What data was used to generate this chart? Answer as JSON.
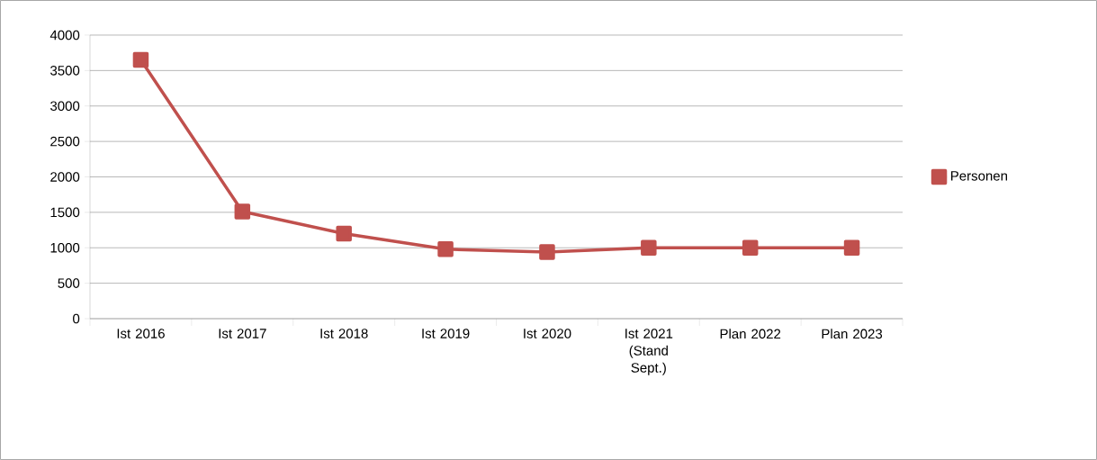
{
  "chart_data": {
    "type": "line",
    "categories": [
      "Ist 2016",
      "Ist 2017",
      "Ist 2018",
      "Ist 2019",
      "Ist 2020",
      "Ist 2021 (Stand Sept.)",
      "Plan 2022",
      "Plan 2023"
    ],
    "series": [
      {
        "name": "Personen",
        "color": "#c0504d",
        "values": [
          3650,
          1510,
          1200,
          980,
          940,
          1000,
          1000,
          1000
        ]
      }
    ],
    "ylim": [
      0,
      4000
    ],
    "yticks": [
      0,
      500,
      1000,
      1500,
      2000,
      2500,
      3000,
      3500,
      4000
    ],
    "grid": "y",
    "legend": "right",
    "marker": "square",
    "line_style": "solid"
  }
}
